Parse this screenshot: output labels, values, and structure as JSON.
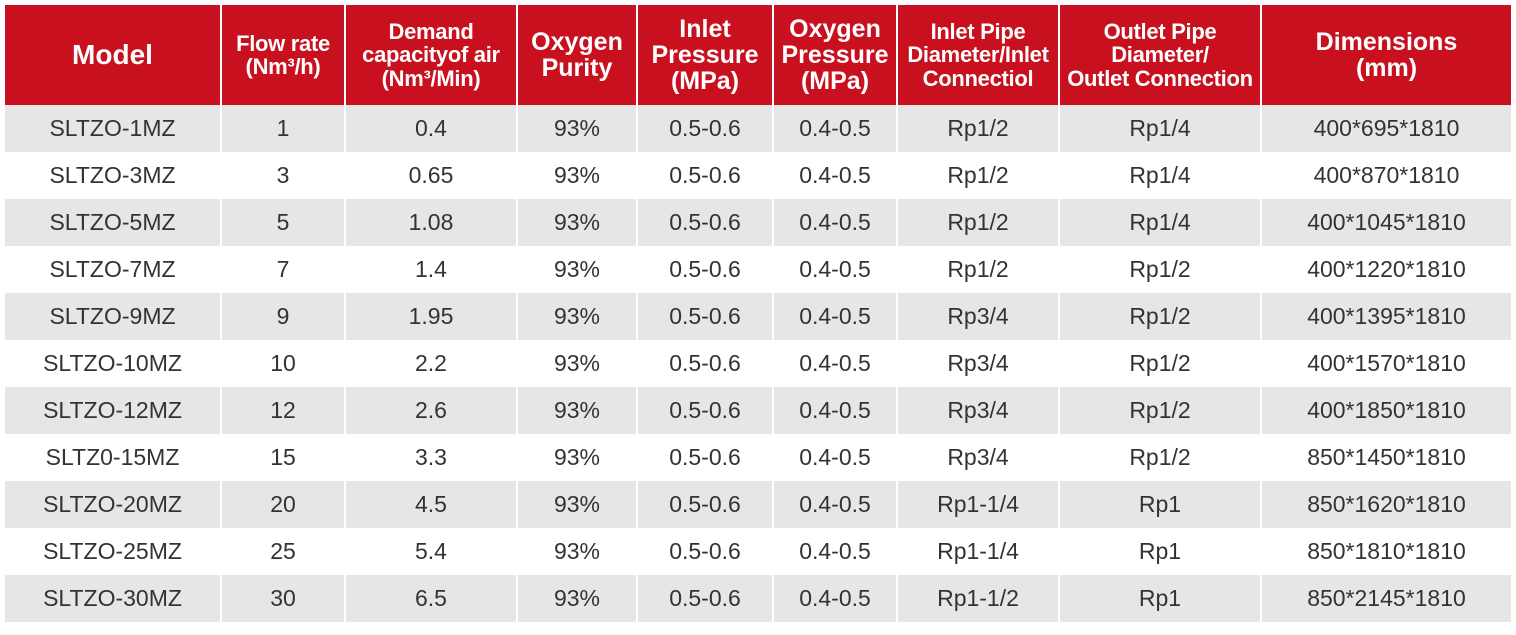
{
  "table": {
    "headers": [
      {
        "key": "model",
        "label": "Model"
      },
      {
        "key": "flow",
        "label": "Flow rate\n(Nm³/h)"
      },
      {
        "key": "air",
        "label": "Demand\ncapacityof air\n(Nm³/Min)"
      },
      {
        "key": "purity",
        "label": "Oxygen\nPurity"
      },
      {
        "key": "inlet_pressure",
        "label": "Inlet\nPressure\n(MPa)"
      },
      {
        "key": "oxygen_pressure",
        "label": "Oxygen\nPressure\n(MPa)"
      },
      {
        "key": "inlet_pipe",
        "label": "Inlet Pipe\nDiameter/Inlet\nConnectiol"
      },
      {
        "key": "outlet_pipe",
        "label": "Outlet Pipe\nDiameter/\nOutlet Connection"
      },
      {
        "key": "dimensions",
        "label": "Dimensions\n(mm)"
      }
    ],
    "rows": [
      [
        "SLTZO-1MZ",
        "1",
        "0.4",
        "93%",
        "0.5-0.6",
        "0.4-0.5",
        "Rp1/2",
        "Rp1/4",
        "400*695*1810"
      ],
      [
        "SLTZO-3MZ",
        "3",
        "0.65",
        "93%",
        "0.5-0.6",
        "0.4-0.5",
        "Rp1/2",
        "Rp1/4",
        "400*870*1810"
      ],
      [
        "SLTZO-5MZ",
        "5",
        "1.08",
        "93%",
        "0.5-0.6",
        "0.4-0.5",
        "Rp1/2",
        "Rp1/4",
        "400*1045*1810"
      ],
      [
        "SLTZO-7MZ",
        "7",
        "1.4",
        "93%",
        "0.5-0.6",
        "0.4-0.5",
        "Rp1/2",
        "Rp1/2",
        "400*1220*1810"
      ],
      [
        "SLTZO-9MZ",
        "9",
        "1.95",
        "93%",
        "0.5-0.6",
        "0.4-0.5",
        "Rp3/4",
        "Rp1/2",
        "400*1395*1810"
      ],
      [
        "SLTZO-10MZ",
        "10",
        "2.2",
        "93%",
        "0.5-0.6",
        "0.4-0.5",
        "Rp3/4",
        "Rp1/2",
        "400*1570*1810"
      ],
      [
        "SLTZO-12MZ",
        "12",
        "2.6",
        "93%",
        "0.5-0.6",
        "0.4-0.5",
        "Rp3/4",
        "Rp1/2",
        "400*1850*1810"
      ],
      [
        "SLTZ0-15MZ",
        "15",
        "3.3",
        "93%",
        "0.5-0.6",
        "0.4-0.5",
        "Rp3/4",
        "Rp1/2",
        "850*1450*1810"
      ],
      [
        "SLTZO-20MZ",
        "20",
        "4.5",
        "93%",
        "0.5-0.6",
        "0.4-0.5",
        "Rp1-1/4",
        "Rp1",
        "850*1620*1810"
      ],
      [
        "SLTZO-25MZ",
        "25",
        "5.4",
        "93%",
        "0.5-0.6",
        "0.4-0.5",
        "Rp1-1/4",
        "Rp1",
        "850*1810*1810"
      ],
      [
        "SLTZO-30MZ",
        "30",
        "6.5",
        "93%",
        "0.5-0.6",
        "0.4-0.5",
        "Rp1-1/2",
        "Rp1",
        "850*2145*1810"
      ]
    ]
  }
}
